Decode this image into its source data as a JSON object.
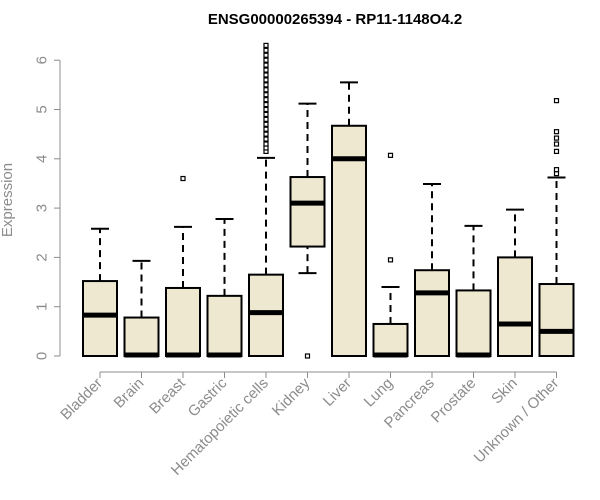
{
  "chart_data": {
    "type": "boxplot",
    "title": "ENSG00000265394 - RP11-1148O4.2",
    "xlabel": "",
    "ylabel": "Expression",
    "ylim": [
      0,
      6.3
    ],
    "yticks": [
      0,
      1,
      2,
      3,
      4,
      5,
      6
    ],
    "categories": [
      "Bladder",
      "Brain",
      "Breast",
      "Gastric",
      "Hematopoietic cells",
      "Kidney",
      "Liver",
      "Lung",
      "Pancreas",
      "Prostate",
      "Skin",
      "Unknown / Other"
    ],
    "boxes": [
      {
        "name": "Bladder",
        "whisker_low": 0,
        "q1": 0,
        "median": 0.83,
        "q3": 1.52,
        "whisker_high": 2.58,
        "outliers": []
      },
      {
        "name": "Brain",
        "whisker_low": 0,
        "q1": 0,
        "median": 0.02,
        "q3": 0.78,
        "whisker_high": 1.93,
        "outliers": []
      },
      {
        "name": "Breast",
        "whisker_low": 0,
        "q1": 0,
        "median": 0.02,
        "q3": 1.38,
        "whisker_high": 2.62,
        "outliers": [
          3.6
        ]
      },
      {
        "name": "Gastric",
        "whisker_low": 0,
        "q1": 0,
        "median": 0.02,
        "q3": 1.22,
        "whisker_high": 2.78,
        "outliers": []
      },
      {
        "name": "Hematopoietic cells",
        "whisker_low": 0,
        "q1": 0,
        "median": 0.88,
        "q3": 1.65,
        "whisker_high": 4.02,
        "outliers": [
          4.15,
          4.22,
          4.3,
          4.4,
          4.5,
          4.6,
          4.7,
          4.8,
          4.9,
          5.0,
          5.1,
          5.2,
          5.3,
          5.4,
          5.5,
          5.6,
          5.7,
          5.8,
          5.9,
          6.0,
          6.1,
          6.2,
          6.3
        ]
      },
      {
        "name": "Kidney",
        "whisker_low": 1.68,
        "q1": 2.22,
        "median": 3.1,
        "q3": 3.63,
        "whisker_high": 5.12,
        "outliers": [
          0.0
        ]
      },
      {
        "name": "Liver",
        "whisker_low": 0,
        "q1": 0,
        "median": 4.0,
        "q3": 4.67,
        "whisker_high": 5.55,
        "outliers": []
      },
      {
        "name": "Lung",
        "whisker_low": 0,
        "q1": 0,
        "median": 0.02,
        "q3": 0.65,
        "whisker_high": 1.4,
        "outliers": [
          1.95,
          4.07
        ]
      },
      {
        "name": "Pancreas",
        "whisker_low": 0,
        "q1": 0,
        "median": 1.28,
        "q3": 1.74,
        "whisker_high": 3.49,
        "outliers": []
      },
      {
        "name": "Prostate",
        "whisker_low": 0,
        "q1": 0,
        "median": 0.02,
        "q3": 1.33,
        "whisker_high": 2.64,
        "outliers": []
      },
      {
        "name": "Skin",
        "whisker_low": 0,
        "q1": 0,
        "median": 0.65,
        "q3": 2.0,
        "whisker_high": 2.97,
        "outliers": []
      },
      {
        "name": "Unknown / Other",
        "whisker_low": 0,
        "q1": 0,
        "median": 0.5,
        "q3": 1.46,
        "whisker_high": 3.62,
        "outliers": [
          3.7,
          3.78,
          4.15,
          4.3,
          4.42,
          4.55,
          5.18
        ]
      }
    ],
    "colors": {
      "box_fill": "#efe8d0",
      "stroke": "#000000",
      "axis_text": "#8c8c8c",
      "title": "#000000"
    }
  }
}
